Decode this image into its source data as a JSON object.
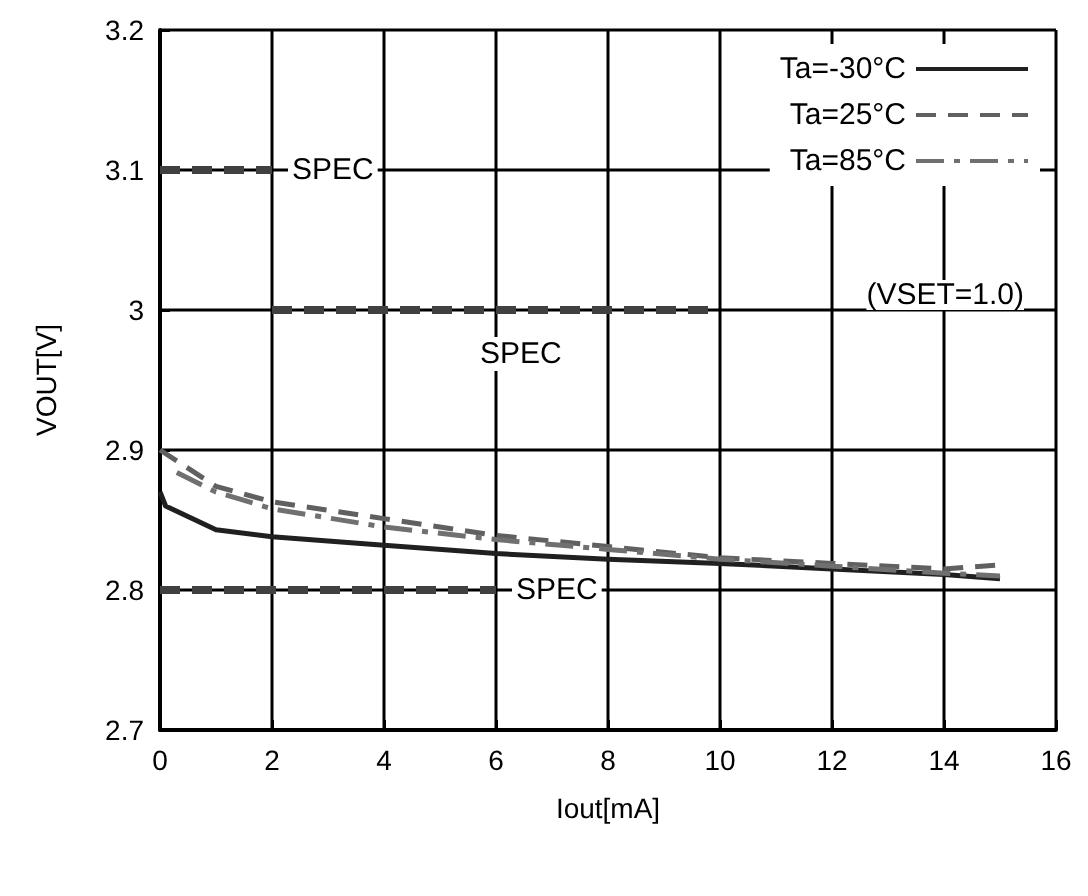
{
  "chart_data": {
    "type": "line",
    "xlabel": "Iout[mA]",
    "ylabel": "VOUT[V]",
    "xlim": [
      0,
      16
    ],
    "xticks": [
      0,
      2,
      4,
      6,
      8,
      10,
      12,
      14,
      16
    ],
    "ylim": [
      2.7,
      3.2
    ],
    "yticks": [
      2.7,
      2.8,
      2.9,
      3,
      3.1,
      3.2
    ],
    "grid": true,
    "legend": "top right",
    "marker": "none",
    "series": [
      {
        "name": "Ta=-30°C",
        "color": "#202020",
        "line_style": "solid",
        "x": [
          0,
          0.1,
          1,
          2,
          4,
          6,
          8,
          10,
          12,
          14,
          15
        ],
        "values": [
          2.87,
          2.86,
          2.843,
          2.838,
          2.832,
          2.826,
          2.822,
          2.819,
          2.815,
          2.811,
          2.808
        ]
      },
      {
        "name": "Ta=25°C",
        "color": "#606060",
        "line_style": "dashed",
        "x": [
          0,
          1,
          2,
          4,
          6,
          8,
          10,
          12,
          14,
          15
        ],
        "values": [
          2.9,
          2.874,
          2.863,
          2.851,
          2.839,
          2.831,
          2.823,
          2.819,
          2.815,
          2.818
        ]
      },
      {
        "name": "Ta=85°C",
        "color": "#707070",
        "line_style": "dashdot",
        "x": [
          0.3,
          1,
          2,
          4,
          6,
          8,
          10,
          12,
          14,
          15
        ],
        "values": [
          2.884,
          2.87,
          2.858,
          2.845,
          2.836,
          2.829,
          2.822,
          2.817,
          2.812,
          2.81
        ]
      },
      {
        "name": "SPEC",
        "color": "#404040",
        "line_style": "dashed",
        "x": [
          0,
          2
        ],
        "values": [
          3.1,
          3.1
        ]
      },
      {
        "name": "SPEC",
        "color": "#404040",
        "line_style": "dashed",
        "x": [
          2,
          10
        ],
        "values": [
          3,
          3
        ]
      },
      {
        "name": "SPEC",
        "color": "#404040",
        "line_style": "dashed",
        "x": [
          0,
          6
        ],
        "values": [
          2.8,
          2.8
        ]
      }
    ],
    "annotations": [
      "(VSET=1.0)"
    ]
  }
}
